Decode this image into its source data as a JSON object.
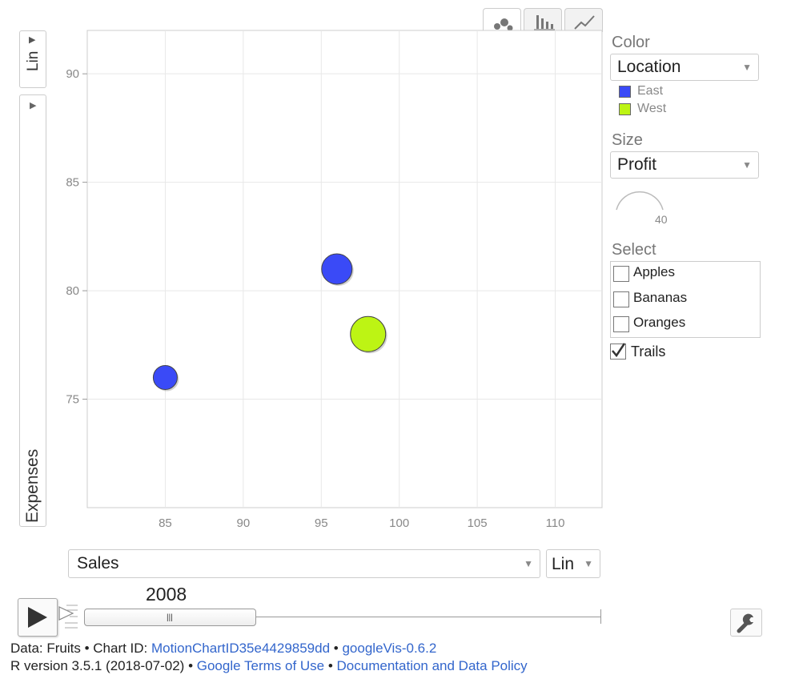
{
  "chart_tabs": [
    {
      "name": "bubble-chart-tab",
      "icon": "bubble-chart-icon",
      "active": true
    },
    {
      "name": "bar-chart-tab",
      "icon": "bar-chart-icon",
      "active": false
    },
    {
      "name": "line-chart-tab",
      "icon": "line-chart-icon",
      "active": false
    }
  ],
  "y_axis": {
    "scale_label": "Lin",
    "label": "Expenses"
  },
  "x_axis": {
    "variable": "Sales",
    "scale_label": "Lin"
  },
  "year_label": "2008",
  "controls": {
    "color_title": "Color",
    "color_value": "Location",
    "size_title": "Size",
    "size_value": "Profit",
    "size_legend_value": "40",
    "select_title": "Select",
    "select_items": [
      {
        "label": "Apples",
        "checked": false
      },
      {
        "label": "Bananas",
        "checked": false
      },
      {
        "label": "Oranges",
        "checked": false
      }
    ],
    "trails_label": "Trails",
    "trails_checked": true
  },
  "legend": [
    {
      "label": "East",
      "color": "#3a4af7"
    },
    {
      "label": "West",
      "color": "#bdf414"
    }
  ],
  "chart_data": {
    "type": "scatter",
    "xlabel": "Sales",
    "ylabel": "Expenses",
    "xlim": [
      80,
      113
    ],
    "ylim": [
      70,
      92
    ],
    "xticks": [
      85,
      90,
      95,
      100,
      105,
      110
    ],
    "yticks": [
      75,
      80,
      85,
      90
    ],
    "grid": true,
    "points": [
      {
        "x": 85,
        "y": 76,
        "size": 15,
        "group": "East"
      },
      {
        "x": 96,
        "y": 81,
        "size": 19,
        "group": "East"
      },
      {
        "x": 98,
        "y": 78,
        "size": 22,
        "group": "West"
      }
    ]
  },
  "footer": {
    "line1_prefix": "Data: Fruits • Chart ID: ",
    "chart_id": "MotionChartID35e4429859dd",
    "sep1": " • ",
    "package": "googleVis-0.6.2",
    "line2_prefix": "R version 3.5.1 (2018-07-02) • ",
    "terms": "Google Terms of Use",
    "sep2": " • ",
    "policy": "Documentation and Data Policy"
  }
}
